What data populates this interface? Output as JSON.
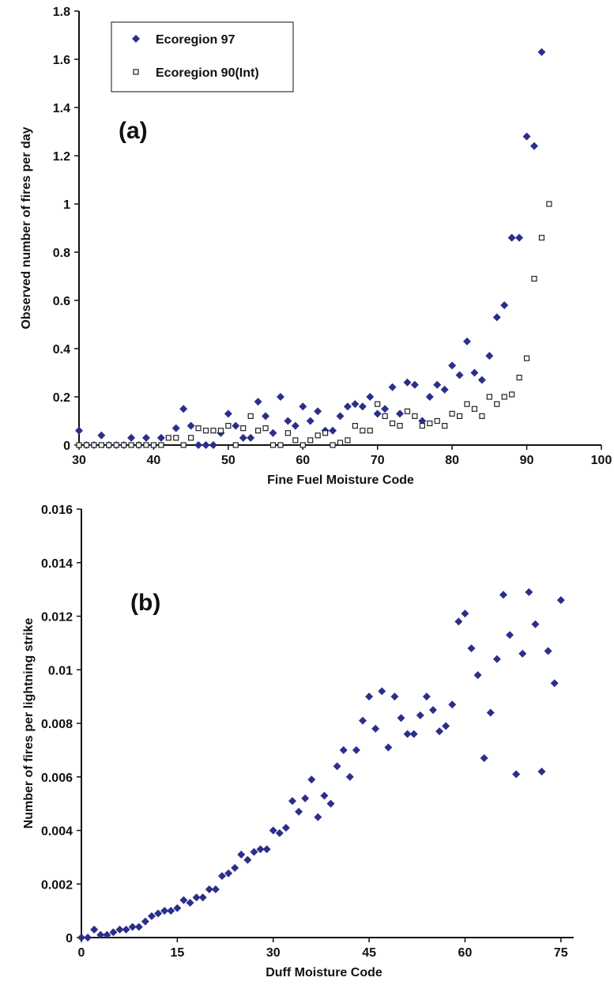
{
  "chart_data": [
    {
      "type": "scatter",
      "panel_label": "(a)",
      "xlabel": "Fine Fuel Moisture Code",
      "ylabel": "Observed number of fires per day",
      "xlim": [
        30,
        100
      ],
      "ylim": [
        0,
        1.8
      ],
      "xticks": [
        30,
        40,
        50,
        60,
        70,
        80,
        90,
        100
      ],
      "yticks": [
        0,
        0.2,
        0.4,
        0.6,
        0.8,
        1,
        1.2,
        1.4,
        1.6,
        1.8
      ],
      "grid": false,
      "legend_position": "top-left",
      "series": [
        {
          "name": "Ecoregion 97",
          "marker": "diamond",
          "color": "#2b2f8a",
          "points": [
            [
              30,
              0.06
            ],
            [
              31,
              0
            ],
            [
              32,
              0
            ],
            [
              33,
              0.04
            ],
            [
              34,
              0
            ],
            [
              35,
              0
            ],
            [
              36,
              0
            ],
            [
              37,
              0.03
            ],
            [
              38,
              0
            ],
            [
              39,
              0.03
            ],
            [
              41,
              0.03
            ],
            [
              43,
              0.07
            ],
            [
              44,
              0.15
            ],
            [
              45,
              0.08
            ],
            [
              46,
              0
            ],
            [
              47,
              0
            ],
            [
              48,
              0
            ],
            [
              49,
              0.05
            ],
            [
              50,
              0.13
            ],
            [
              51,
              0.08
            ],
            [
              52,
              0.03
            ],
            [
              53,
              0.03
            ],
            [
              54,
              0.18
            ],
            [
              55,
              0.12
            ],
            [
              56,
              0.05
            ],
            [
              57,
              0.2
            ],
            [
              58,
              0.1
            ],
            [
              59,
              0.08
            ],
            [
              60,
              0.16
            ],
            [
              61,
              0.1
            ],
            [
              62,
              0.14
            ],
            [
              63,
              0.06
            ],
            [
              64,
              0.06
            ],
            [
              65,
              0.12
            ],
            [
              66,
              0.16
            ],
            [
              67,
              0.17
            ],
            [
              68,
              0.16
            ],
            [
              69,
              0.2
            ],
            [
              70,
              0.13
            ],
            [
              71,
              0.15
            ],
            [
              72,
              0.24
            ],
            [
              73,
              0.13
            ],
            [
              74,
              0.26
            ],
            [
              75,
              0.25
            ],
            [
              76,
              0.1
            ],
            [
              77,
              0.2
            ],
            [
              78,
              0.25
            ],
            [
              79,
              0.23
            ],
            [
              80,
              0.33
            ],
            [
              81,
              0.29
            ],
            [
              82,
              0.43
            ],
            [
              83,
              0.3
            ],
            [
              84,
              0.27
            ],
            [
              85,
              0.37
            ],
            [
              86,
              0.53
            ],
            [
              87,
              0.58
            ],
            [
              88,
              0.86
            ],
            [
              89,
              0.86
            ],
            [
              90,
              1.28
            ],
            [
              91,
              1.24
            ],
            [
              92,
              1.63
            ]
          ]
        },
        {
          "name": "Ecoregion 90(Int)",
          "marker": "open-square",
          "color": "#222222",
          "points": [
            [
              30,
              0
            ],
            [
              31,
              0
            ],
            [
              32,
              0
            ],
            [
              33,
              0
            ],
            [
              34,
              0
            ],
            [
              35,
              0
            ],
            [
              36,
              0
            ],
            [
              37,
              0
            ],
            [
              38,
              0
            ],
            [
              39,
              0
            ],
            [
              40,
              0
            ],
            [
              41,
              0
            ],
            [
              42,
              0.03
            ],
            [
              43,
              0.03
            ],
            [
              44,
              0
            ],
            [
              45,
              0.03
            ],
            [
              46,
              0.07
            ],
            [
              47,
              0.06
            ],
            [
              48,
              0.06
            ],
            [
              49,
              0.06
            ],
            [
              50,
              0.08
            ],
            [
              51,
              0
            ],
            [
              52,
              0.07
            ],
            [
              53,
              0.12
            ],
            [
              54,
              0.06
            ],
            [
              55,
              0.07
            ],
            [
              56,
              0
            ],
            [
              57,
              0
            ],
            [
              58,
              0.05
            ],
            [
              59,
              0.02
            ],
            [
              60,
              0
            ],
            [
              61,
              0.02
            ],
            [
              62,
              0.04
            ],
            [
              63,
              0.05
            ],
            [
              64,
              0
            ],
            [
              65,
              0.01
            ],
            [
              66,
              0.02
            ],
            [
              67,
              0.08
            ],
            [
              68,
              0.06
            ],
            [
              69,
              0.06
            ],
            [
              70,
              0.17
            ],
            [
              71,
              0.12
            ],
            [
              72,
              0.09
            ],
            [
              73,
              0.08
            ],
            [
              74,
              0.14
            ],
            [
              75,
              0.12
            ],
            [
              76,
              0.08
            ],
            [
              77,
              0.09
            ],
            [
              78,
              0.1
            ],
            [
              79,
              0.08
            ],
            [
              80,
              0.13
            ],
            [
              81,
              0.12
            ],
            [
              82,
              0.17
            ],
            [
              83,
              0.15
            ],
            [
              84,
              0.12
            ],
            [
              85,
              0.2
            ],
            [
              86,
              0.17
            ],
            [
              87,
              0.2
            ],
            [
              88,
              0.21
            ],
            [
              89,
              0.28
            ],
            [
              90,
              0.36
            ],
            [
              91,
              0.69
            ],
            [
              92,
              0.86
            ],
            [
              93,
              1.0
            ]
          ]
        }
      ]
    },
    {
      "type": "scatter",
      "panel_label": "(b)",
      "xlabel": "Duff Moisture Code",
      "ylabel": "Number of fires per lightning strike",
      "xlim": [
        0,
        77
      ],
      "ylim": [
        0,
        0.016
      ],
      "xticks": [
        0,
        15,
        30,
        45,
        60,
        75
      ],
      "yticks": [
        0,
        0.002,
        0.004,
        0.006,
        0.008,
        0.01,
        0.012,
        0.014,
        0.016
      ],
      "grid": false,
      "series": [
        {
          "marker": "diamond",
          "color": "#2b2f8a",
          "points": [
            [
              0,
              0
            ],
            [
              1,
              0
            ],
            [
              2,
              0.0003
            ],
            [
              3,
              0.0001
            ],
            [
              4,
              0.0001
            ],
            [
              5,
              0.0002
            ],
            [
              6,
              0.0003
            ],
            [
              7,
              0.0003
            ],
            [
              8,
              0.0004
            ],
            [
              9,
              0.0004
            ],
            [
              10,
              0.0006
            ],
            [
              11,
              0.0008
            ],
            [
              12,
              0.0009
            ],
            [
              13,
              0.001
            ],
            [
              14,
              0.001
            ],
            [
              15,
              0.0011
            ],
            [
              16,
              0.0014
            ],
            [
              17,
              0.0013
            ],
            [
              18,
              0.0015
            ],
            [
              19,
              0.0015
            ],
            [
              20,
              0.0018
            ],
            [
              21,
              0.0018
            ],
            [
              22,
              0.0023
            ],
            [
              23,
              0.0024
            ],
            [
              24,
              0.0026
            ],
            [
              25,
              0.0031
            ],
            [
              26,
              0.0029
            ],
            [
              27,
              0.0032
            ],
            [
              28,
              0.0033
            ],
            [
              29,
              0.0033
            ],
            [
              30,
              0.004
            ],
            [
              31,
              0.0039
            ],
            [
              32,
              0.0041
            ],
            [
              33,
              0.0051
            ],
            [
              34,
              0.0047
            ],
            [
              35,
              0.0052
            ],
            [
              36,
              0.0059
            ],
            [
              37,
              0.0045
            ],
            [
              38,
              0.0053
            ],
            [
              39,
              0.005
            ],
            [
              40,
              0.0064
            ],
            [
              41,
              0.007
            ],
            [
              42,
              0.006
            ],
            [
              43,
              0.007
            ],
            [
              44,
              0.0081
            ],
            [
              45,
              0.009
            ],
            [
              46,
              0.0078
            ],
            [
              47,
              0.0092
            ],
            [
              48,
              0.0071
            ],
            [
              49,
              0.009
            ],
            [
              50,
              0.0082
            ],
            [
              51,
              0.0076
            ],
            [
              52,
              0.0076
            ],
            [
              53,
              0.0083
            ],
            [
              54,
              0.009
            ],
            [
              55,
              0.0085
            ],
            [
              56,
              0.0077
            ],
            [
              57,
              0.0079
            ],
            [
              58,
              0.0087
            ],
            [
              59,
              0.0118
            ],
            [
              60,
              0.0121
            ],
            [
              61,
              0.0108
            ],
            [
              62,
              0.0098
            ],
            [
              63,
              0.0067
            ],
            [
              64,
              0.0084
            ],
            [
              65,
              0.0104
            ],
            [
              66,
              0.0128
            ],
            [
              67,
              0.0113
            ],
            [
              68,
              0.0061
            ],
            [
              69,
              0.0106
            ],
            [
              70,
              0.0129
            ],
            [
              71,
              0.0117
            ],
            [
              72,
              0.0062
            ],
            [
              73,
              0.0107
            ],
            [
              74,
              0.0095
            ],
            [
              75,
              0.0126
            ]
          ]
        }
      ]
    }
  ]
}
